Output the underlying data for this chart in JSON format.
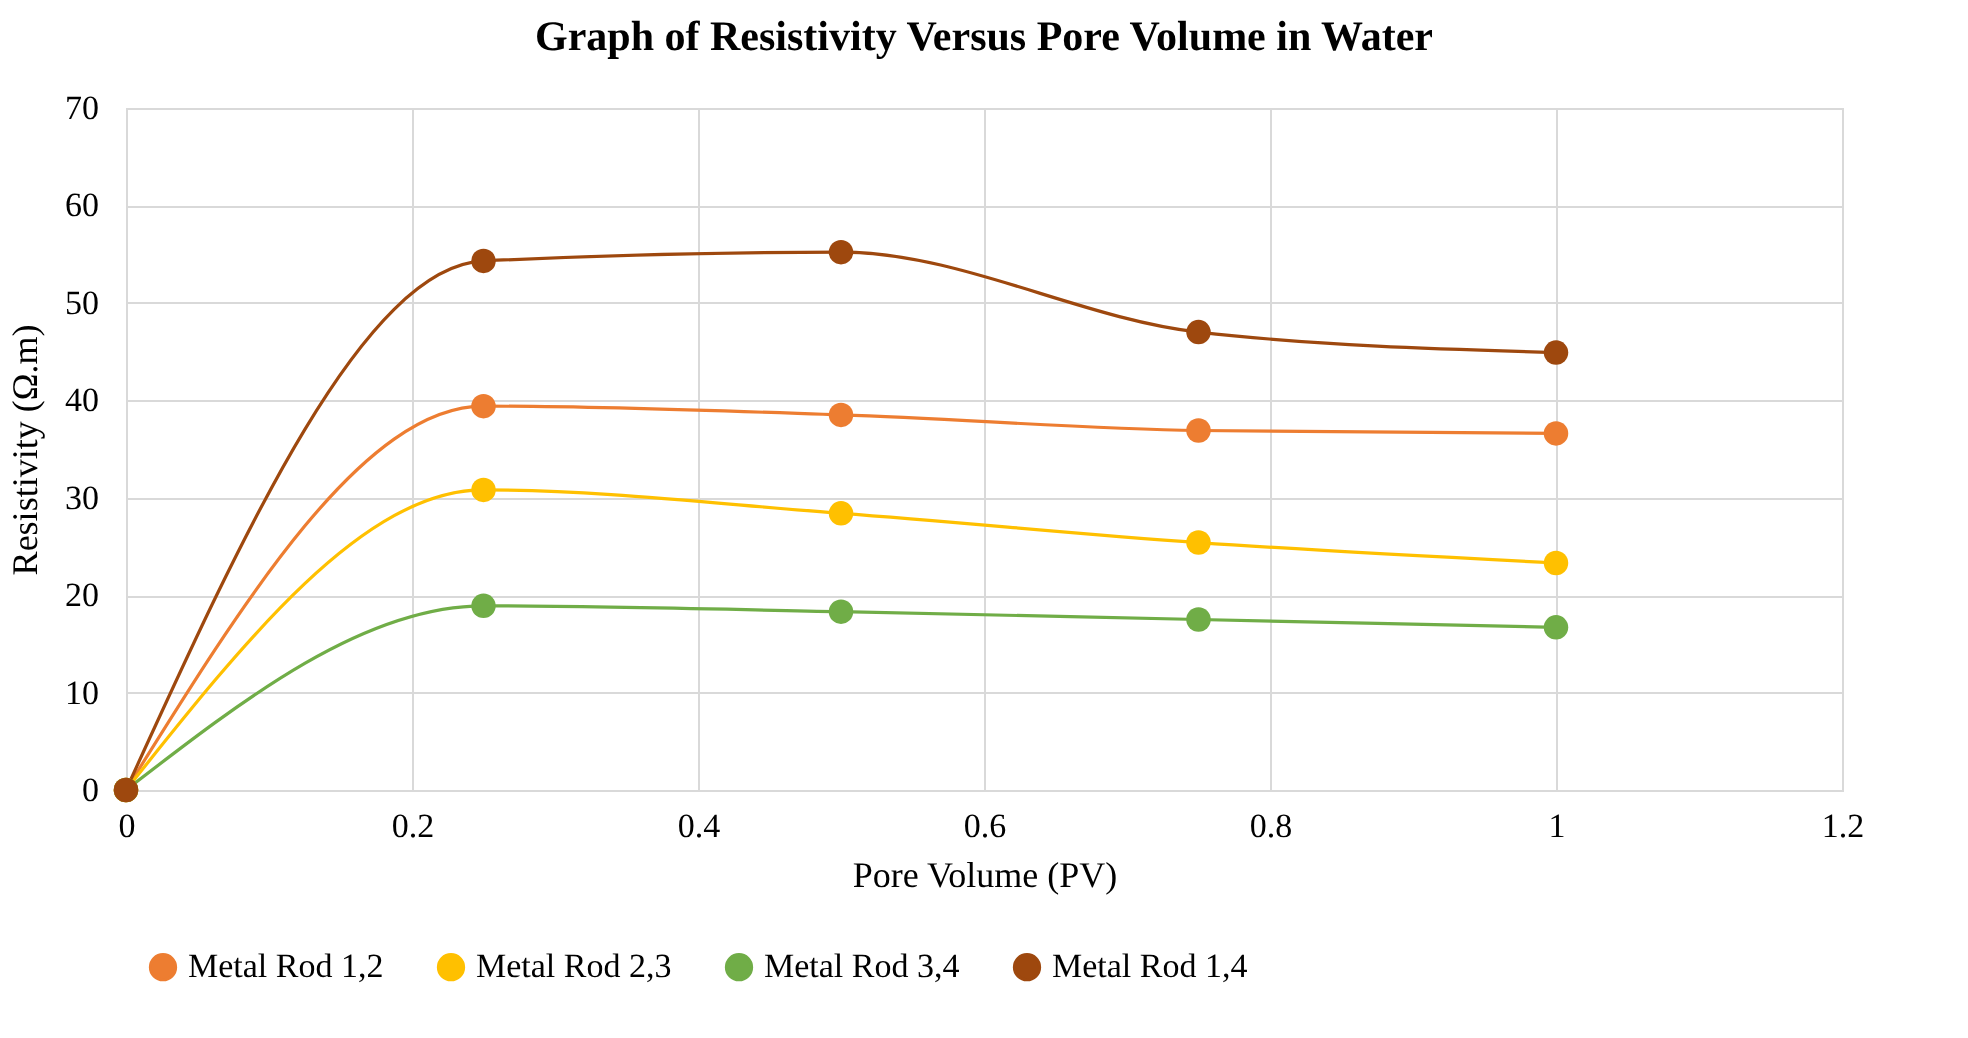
{
  "chart_data": {
    "type": "line",
    "title": "Graph of Resistivity Versus Pore Volume in Water",
    "xlabel": "Pore Volume (PV)",
    "ylabel": "Resistivity (Ω.m)",
    "x": [
      0,
      0.25,
      0.5,
      0.75,
      1
    ],
    "series": [
      {
        "name": "Metal Rod 1,2",
        "color": "#ed7d31",
        "values": [
          0,
          39.4,
          38.5,
          36.9,
          36.6
        ]
      },
      {
        "name": "Metal Rod 2,3",
        "color": "#ffc000",
        "values": [
          0,
          30.8,
          28.4,
          25.4,
          23.3
        ]
      },
      {
        "name": "Metal Rod 3,4",
        "color": "#70ad47",
        "values": [
          0,
          18.9,
          18.3,
          17.5,
          16.7
        ]
      },
      {
        "name": "Metal Rod 1,4",
        "color": "#9e480e",
        "values": [
          0,
          54.3,
          55.2,
          47.0,
          44.9
        ]
      }
    ],
    "xlim": [
      0,
      1.2
    ],
    "xticks": [
      0,
      0.2,
      0.4,
      0.6,
      0.8,
      1,
      1.2
    ],
    "ylim": [
      0,
      70
    ],
    "yticks": [
      0,
      10,
      20,
      30,
      40,
      50,
      60,
      70
    ],
    "grid": true,
    "legend": "bottom",
    "marker": "circle",
    "line_style": "solid"
  }
}
